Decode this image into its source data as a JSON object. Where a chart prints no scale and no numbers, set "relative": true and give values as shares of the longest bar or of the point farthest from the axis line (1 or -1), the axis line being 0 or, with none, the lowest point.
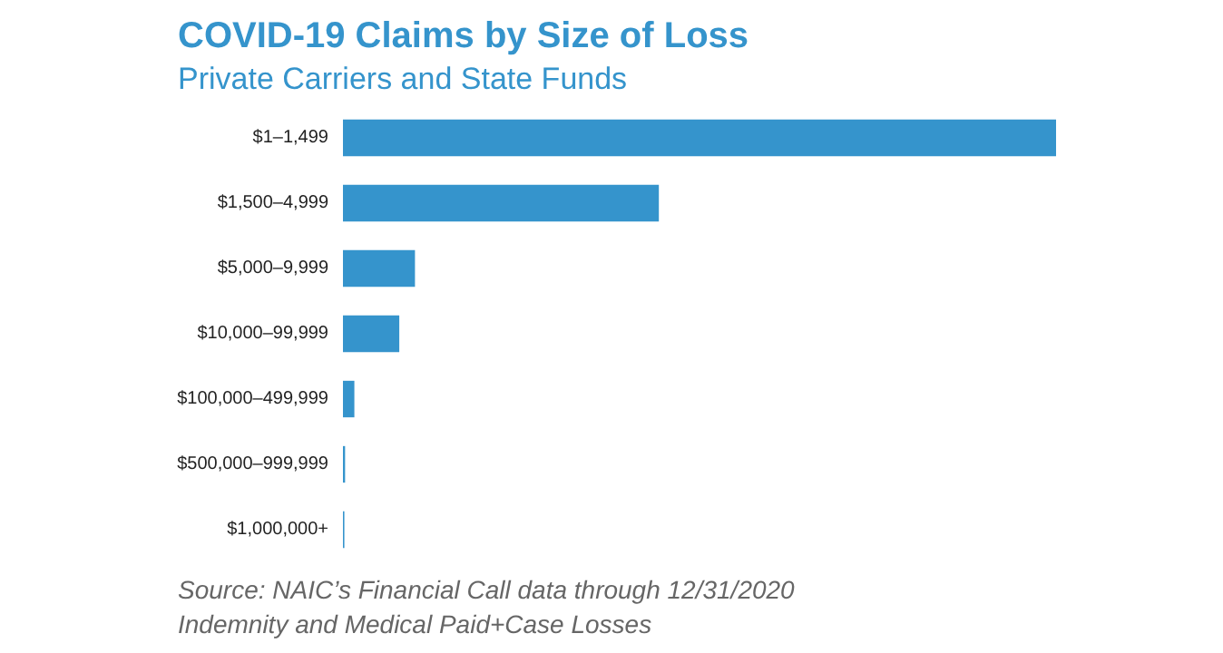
{
  "chart_data": {
    "type": "bar",
    "orientation": "horizontal",
    "relative": true,
    "title": "COVID-19 Claims by Size of Loss",
    "subtitle": "Private Carriers and State Funds",
    "categories": [
      "$1–1,499",
      "$1,500–4,999",
      "$5,000–9,999",
      "$10,000–99,999",
      "$100,000–499,999",
      "$500,000–999,999",
      "$1,000,000+"
    ],
    "values": [
      1,
      0.443,
      0.101,
      0.079,
      0.016,
      0.003,
      0.002
    ],
    "color": "#3594cc",
    "annotations": [
      "Source: NAIC’s Financial Call data through 12/31/2020",
      "Indemnity and Medical Paid+Case Losses"
    ]
  }
}
